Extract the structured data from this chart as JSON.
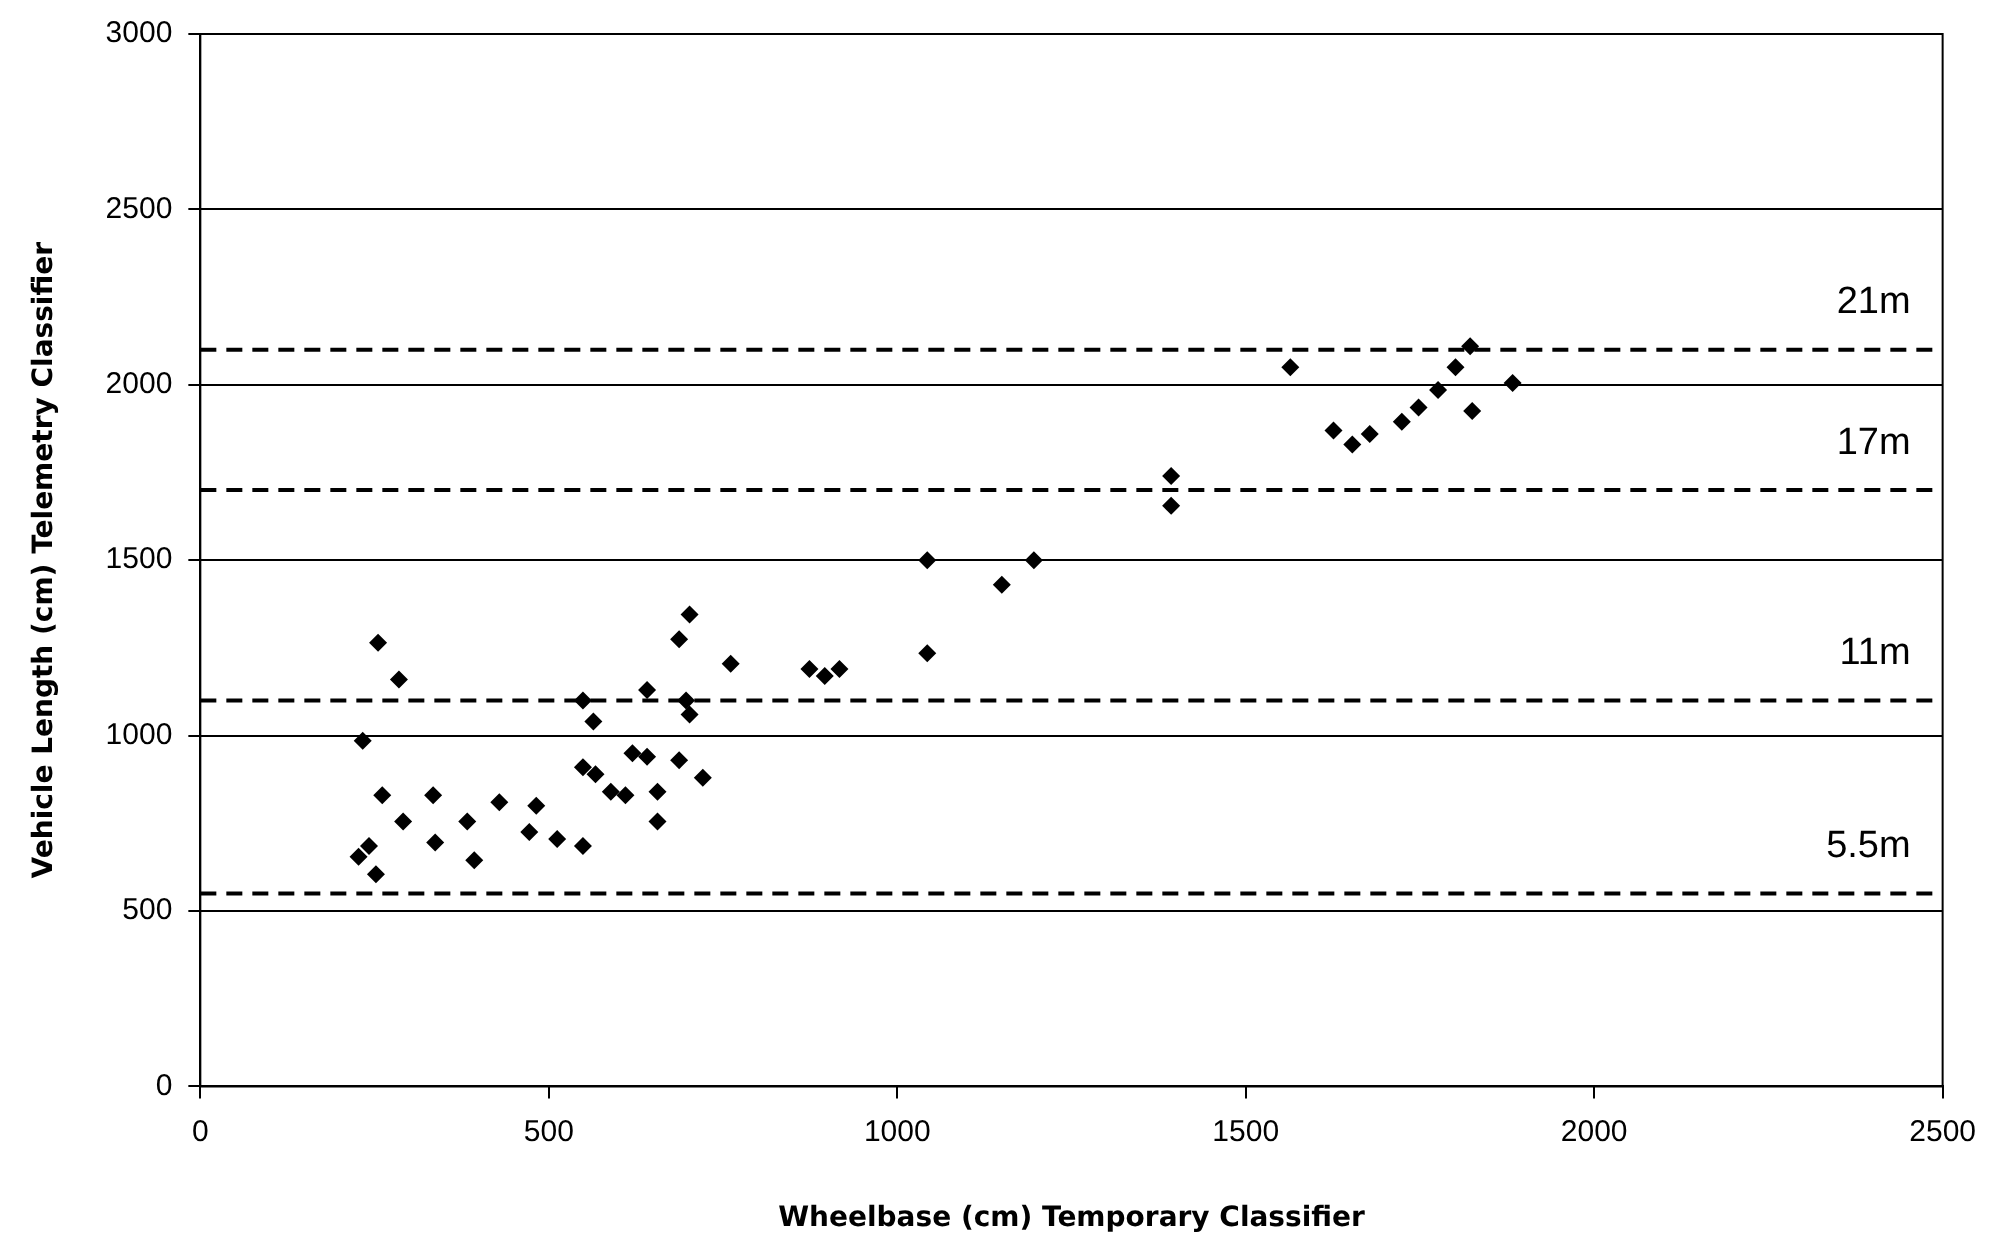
{
  "chart_data": {
    "type": "scatter",
    "xlabel": "Wheelbase (cm) Temporary Classifier",
    "ylabel": "Vehicle Length (cm) Telemetry Classifier",
    "x": [
      255,
      285,
      233,
      261,
      334,
      242,
      227,
      252,
      291,
      337,
      383,
      393,
      429,
      482,
      472,
      512,
      549,
      549,
      564,
      549,
      567,
      589,
      610,
      620,
      641,
      641,
      656,
      656,
      687,
      721,
      702,
      687,
      702,
      697,
      761,
      874,
      917,
      896,
      1043,
      1043,
      1150,
      1196,
      1393,
      1393,
      1564,
      1626,
      1653,
      1678,
      1724,
      1748,
      1776,
      1801,
      1822,
      1825,
      1883
    ],
    "values": [
      1265,
      1160,
      985,
      830,
      830,
      685,
      655,
      605,
      755,
      695,
      755,
      645,
      810,
      800,
      725,
      705,
      685,
      1100,
      1040,
      910,
      890,
      840,
      830,
      950,
      940,
      1130,
      840,
      755,
      930,
      880,
      1345,
      1275,
      1060,
      1100,
      1205,
      1190,
      1190,
      1170,
      1500,
      1235,
      1430,
      1500,
      1740,
      1655,
      2050,
      1870,
      1830,
      1860,
      1895,
      1935,
      1985,
      2050,
      2110,
      1925,
      2005
    ],
    "color": "#000000",
    "marker": "diamond",
    "xlim": [
      0,
      2500
    ],
    "xticks": [
      0,
      500,
      1000,
      1500,
      2000,
      2500
    ],
    "ylim": [
      0,
      3000
    ],
    "yticks": [
      0,
      500,
      1000,
      1500,
      2000,
      2500,
      3000
    ],
    "grid": "y",
    "legend": false,
    "ref_lines": [
      {
        "axis": "y",
        "value": 2100,
        "label": "21m",
        "line_style": "dashed",
        "color": "#000000"
      },
      {
        "axis": "y",
        "value": 1700,
        "label": "17m",
        "line_style": "dashed",
        "color": "#000000"
      },
      {
        "axis": "y",
        "value": 1100,
        "label": "11m",
        "line_style": "dashed",
        "color": "#000000"
      },
      {
        "axis": "y",
        "value": 550,
        "label": "5.5m",
        "line_style": "dashed",
        "color": "#000000"
      }
    ]
  }
}
